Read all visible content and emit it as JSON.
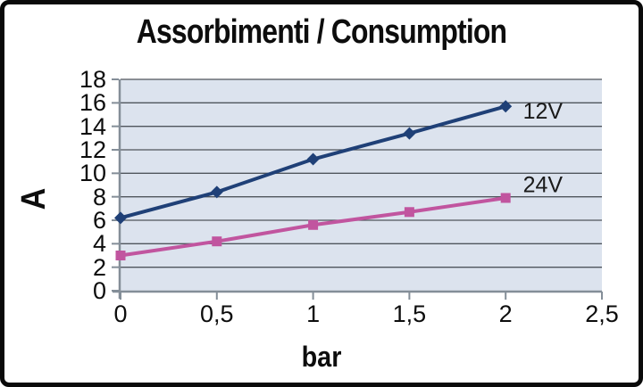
{
  "title": "Assorbimenti / Consumption",
  "chart_data": {
    "type": "line",
    "title": "Assorbimenti / Consumption",
    "xlabel": "bar",
    "ylabel": "A",
    "xlim": [
      0,
      2.5
    ],
    "ylim": [
      0,
      18
    ],
    "grid": "horizontal",
    "legend_position": "inline-labels-right",
    "x": [
      0,
      0.5,
      1,
      1.5,
      2
    ],
    "series": [
      {
        "name": "12V",
        "values": [
          6.2,
          8.4,
          11.2,
          13.4,
          15.7
        ],
        "color": "#1f4077",
        "marker": "diamond",
        "label_pos": {
          "x": 2.09,
          "y": 14.66
        }
      },
      {
        "name": "24V",
        "values": [
          3.0,
          4.2,
          5.6,
          6.7,
          7.9
        ],
        "color": "#c1559f",
        "marker": "square",
        "label_pos": {
          "x": 2.09,
          "y": 8.4
        }
      }
    ],
    "x_ticks": [
      {
        "v": 0,
        "label": "0"
      },
      {
        "v": 0.5,
        "label": "0,5"
      },
      {
        "v": 1,
        "label": "1"
      },
      {
        "v": 1.5,
        "label": "1,5"
      },
      {
        "v": 2,
        "label": "2"
      },
      {
        "v": 2.5,
        "label": "2,5"
      }
    ],
    "y_ticks": [
      {
        "v": 0,
        "label": "0"
      },
      {
        "v": 2,
        "label": "2"
      },
      {
        "v": 4,
        "label": "4"
      },
      {
        "v": 6,
        "label": "6"
      },
      {
        "v": 8,
        "label": "8"
      },
      {
        "v": 10,
        "label": "10"
      },
      {
        "v": 12,
        "label": "12"
      },
      {
        "v": 14,
        "label": "14"
      },
      {
        "v": 16,
        "label": "16"
      },
      {
        "v": 18,
        "label": "18"
      }
    ],
    "colors": {
      "background": "#ffffff",
      "frame_border": "#0a0a0a",
      "plot_bg": "#dce3ee",
      "grid": "#4f555c",
      "axis": "#848e98",
      "text": "#111111"
    }
  }
}
